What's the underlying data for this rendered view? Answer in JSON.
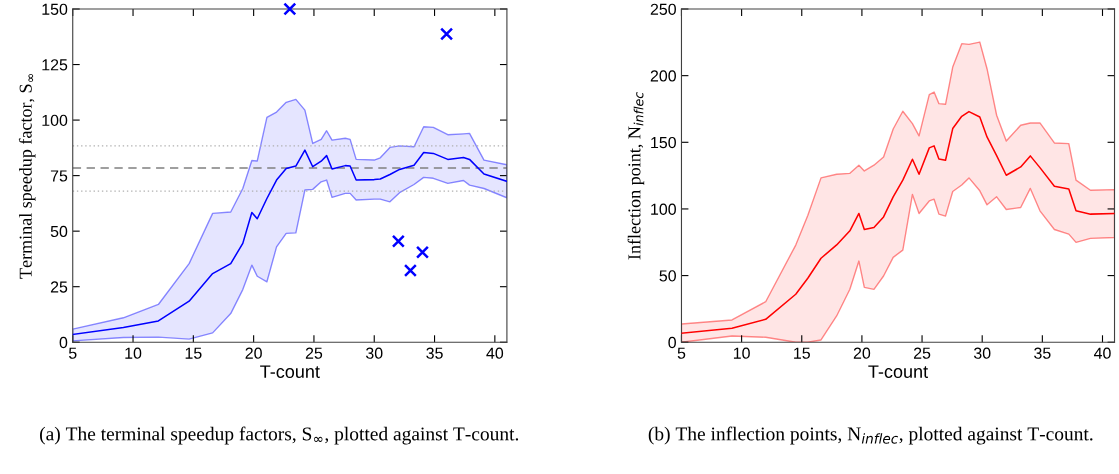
{
  "chart_data": [
    {
      "type": "line",
      "xlabel": "T-count",
      "ylabel": "Terminal speedup factor, S$_{∞}$",
      "xlim": [
        5,
        41
      ],
      "xticks": [
        5,
        10,
        15,
        20,
        25,
        30,
        35,
        40
      ],
      "ylim": [
        0,
        150
      ],
      "yticks": [
        0,
        25,
        50,
        75,
        100,
        125,
        150
      ],
      "grid": false,
      "legend": false,
      "marker": "none",
      "line_style": "solid",
      "series": [
        {
          "color": "#0000ff",
          "x": [
            5,
            9.2,
            12.1,
            14.65,
            16.6,
            18.1,
            19.1,
            19.85,
            20.3,
            21.1,
            21.9,
            22.7,
            23.5,
            24.25,
            24.9,
            25.6,
            26.05,
            26.5,
            27.6,
            28,
            28.5,
            30,
            30.5,
            31.3,
            32.1,
            33.3,
            34.1,
            34.9,
            36.1,
            37.4,
            37.9,
            39.1,
            41
          ],
          "values": [
            3.5,
            6.6,
            9.6,
            18.5,
            30.9,
            35.4,
            44.5,
            58.4,
            55.6,
            64.7,
            73,
            78.2,
            79.3,
            86.5,
            79,
            81.5,
            84,
            78,
            79.5,
            79.3,
            73,
            73.2,
            73.5,
            75.5,
            77.8,
            79.7,
            85.4,
            85,
            82.3,
            83.2,
            82.3,
            75.7,
            72.4
          ],
          "upper": [
            5.9,
            11,
            17,
            35.4,
            58,
            58.6,
            69.2,
            81.8,
            81.6,
            101.2,
            103.6,
            108,
            109.3,
            104.5,
            89.5,
            91.3,
            95.2,
            91,
            91.8,
            91.3,
            82.3,
            82,
            83,
            87.7,
            88.4,
            88,
            97,
            96.7,
            93.4,
            93.8,
            94,
            82,
            79.9
          ],
          "lower": [
            0.6,
            2.1,
            2.3,
            1.4,
            4.2,
            12.9,
            23.7,
            34.7,
            29.7,
            27.2,
            42.9,
            49,
            49.2,
            68.5,
            68.8,
            72.2,
            73,
            65.2,
            67,
            67,
            64,
            64.4,
            64.4,
            63.2,
            67.3,
            71,
            74.2,
            73.8,
            71.5,
            72.8,
            70.7,
            69.2,
            65
          ]
        },
        {
          "type": "scatter",
          "color": "#0000ff",
          "marker": "cross",
          "x": [
            23,
            32,
            33,
            34,
            36
          ],
          "values": [
            150,
            45.5,
            32.3,
            40.5,
            138.7
          ]
        }
      ],
      "ref_lines": [
        {
          "axis": "y",
          "value": 78.4,
          "color": "#808080",
          "line_style": "dashed"
        },
        {
          "axis": "y",
          "value": 88.4,
          "color": "#b0b0b0",
          "line_style": "dotted"
        },
        {
          "axis": "y",
          "value": 68,
          "color": "#b0b0b0",
          "line_style": "dotted"
        }
      ],
      "annotations": [
        "(a) The terminal speedup factors, S$_{∞}$, plotted against T-count."
      ]
    },
    {
      "type": "line",
      "xlabel": "T-count",
      "ylabel": "Inflection point, N$_{inflec}$",
      "xlim": [
        5,
        41
      ],
      "xticks": [
        5,
        10,
        15,
        20,
        25,
        30,
        35,
        40
      ],
      "ylim": [
        0,
        250
      ],
      "yticks": [
        0,
        50,
        100,
        150,
        200,
        250
      ],
      "grid": false,
      "legend": false,
      "marker": "none",
      "line_style": "solid",
      "series": [
        {
          "color": "#ff0000",
          "x": [
            5,
            9.2,
            12,
            14.5,
            15.5,
            16.6,
            17.9,
            19,
            19.75,
            20.2,
            21,
            21.8,
            22.6,
            23.4,
            24.2,
            24.75,
            25.6,
            26,
            26.4,
            26.95,
            27.55,
            28.3,
            28.9,
            29.8,
            30.4,
            31.2,
            32,
            33.2,
            34,
            34.8,
            36,
            37.2,
            37.8,
            39,
            41
          ],
          "values": [
            6.7,
            10.5,
            17.2,
            36,
            48,
            63,
            73,
            83.6,
            96.6,
            84.6,
            86.1,
            94,
            109,
            121.6,
            137.3,
            126,
            145.8,
            147.3,
            137.5,
            136.5,
            160.3,
            169.5,
            173,
            169,
            154,
            140,
            125.3,
            131.5,
            139.8,
            131,
            117,
            115,
            98.6,
            96.1,
            96.6
          ],
          "upper": [
            13.7,
            16.7,
            30.4,
            72.9,
            95,
            123.3,
            126,
            126.7,
            132.8,
            128.5,
            132.8,
            139,
            160,
            173.3,
            164,
            154.8,
            185.8,
            187.7,
            179,
            178.5,
            206.4,
            224,
            223.5,
            225.2,
            205.2,
            170.3,
            151,
            162.8,
            164.5,
            164.5,
            149.5,
            149,
            121.6,
            114,
            114.5
          ],
          "lower": [
            0,
            4.7,
            3.7,
            0,
            0,
            1.7,
            19.7,
            39.7,
            60.9,
            41.2,
            39.7,
            49.7,
            63.7,
            69.1,
            110.9,
            96.6,
            106,
            107.3,
            96.1,
            94.6,
            113.1,
            118,
            123.3,
            113.6,
            103.1,
            109.1,
            99.6,
            101.1,
            115.4,
            98.6,
            84.6,
            81.1,
            74.9,
            77.9,
            78.6
          ]
        }
      ],
      "annotations": [
        "(b) The inflection points, N$_{inflec}$, plotted against T-count."
      ]
    }
  ]
}
